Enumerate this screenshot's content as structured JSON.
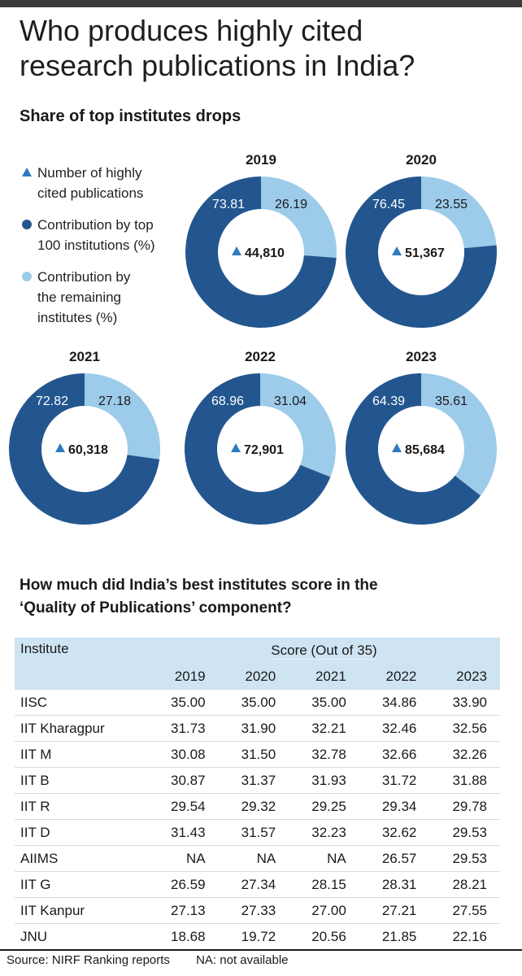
{
  "headline": [
    "Who produces highly cited",
    "research publications in India?"
  ],
  "subtitle1": "Share of top institutes drops",
  "legend": {
    "items": [
      {
        "lines": [
          "Number of highly",
          "cited publications"
        ],
        "marker": "triangle-icon",
        "color": "#2e7bbf"
      },
      {
        "lines": [
          "Contribution by top",
          "100 institutions (%)"
        ],
        "marker": "dot-icon",
        "color": "#23568f"
      },
      {
        "lines": [
          "Contribution by",
          "the remaining",
          "institutes (%)"
        ],
        "marker": "dot-icon",
        "color": "#9dcbea"
      }
    ]
  },
  "colors": {
    "top": "#23568f",
    "remaining": "#9dcbea",
    "triangle": "#2e7bbf",
    "table_header": "#cfe4f3"
  },
  "chart_data": {
    "type": "pie",
    "variant": "donut",
    "title": "Share of top institutes drops",
    "series_labels": [
      "Contribution by top 100 institutions (%)",
      "Contribution by the remaining institutes (%)"
    ],
    "charts": [
      {
        "year": "2019",
        "top100": 73.81,
        "remaining": 26.19,
        "top100_label": "73.81",
        "remaining_label": "26.19",
        "count": "44,810"
      },
      {
        "year": "2020",
        "top100": 76.45,
        "remaining": 23.55,
        "top100_label": "76.45",
        "remaining_label": "23.55",
        "count": "51,367"
      },
      {
        "year": "2021",
        "top100": 72.82,
        "remaining": 27.18,
        "top100_label": "72.82",
        "remaining_label": "27.18",
        "count": "60,318"
      },
      {
        "year": "2022",
        "top100": 68.96,
        "remaining": 31.04,
        "top100_label": "68.96",
        "remaining_label": "31.04",
        "count": "72,901"
      },
      {
        "year": "2023",
        "top100": 64.39,
        "remaining": 35.61,
        "top100_label": "64.39",
        "remaining_label": "35.61",
        "count": "85,684"
      }
    ]
  },
  "subtitle2": [
    "How much did India’s best institutes score in the",
    "‘Quality of Publications’ component?"
  ],
  "table": {
    "col_institute": "Institute",
    "score_header": "Score (Out of 35)",
    "years": [
      "2019",
      "2020",
      "2021",
      "2022",
      "2023"
    ],
    "rows": [
      {
        "name": "IISC",
        "values": [
          "35.00",
          "35.00",
          "35.00",
          "34.86",
          "33.90"
        ]
      },
      {
        "name": "IIT Kharagpur",
        "values": [
          "31.73",
          "31.90",
          "32.21",
          "32.46",
          "32.56"
        ]
      },
      {
        "name": "IIT M",
        "values": [
          "30.08",
          "31.50",
          "32.78",
          "32.66",
          "32.26"
        ]
      },
      {
        "name": "IIT B",
        "values": [
          "30.87",
          "31.37",
          "31.93",
          "31.72",
          "31.88"
        ]
      },
      {
        "name": "IIT R",
        "values": [
          "29.54",
          "29.32",
          "29.25",
          "29.34",
          "29.78"
        ]
      },
      {
        "name": "IIT D",
        "values": [
          "31.43",
          "31.57",
          "32.23",
          "32.62",
          "29.53"
        ]
      },
      {
        "name": "AIIMS",
        "values": [
          "NA",
          "NA",
          "NA",
          "26.57",
          "29.53"
        ]
      },
      {
        "name": "IIT G",
        "values": [
          "26.59",
          "27.34",
          "28.15",
          "28.31",
          "28.21"
        ]
      },
      {
        "name": "IIT Kanpur",
        "values": [
          "27.13",
          "27.33",
          "27.00",
          "27.21",
          "27.55"
        ]
      },
      {
        "name": "JNU",
        "values": [
          "18.68",
          "19.72",
          "20.56",
          "21.85",
          "22.16"
        ]
      }
    ]
  },
  "footer": {
    "source": "Source: NIRF Ranking reports",
    "na_note": "NA: not available"
  }
}
